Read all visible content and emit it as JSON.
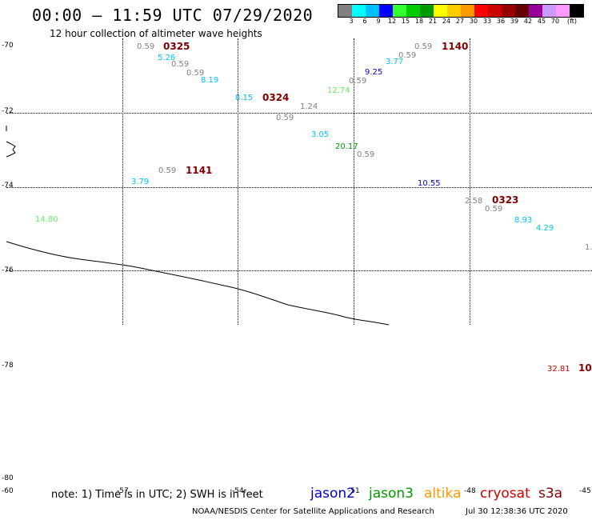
{
  "header": {
    "title": "00:00 – 11:59 UTC 07/29/2020",
    "subtitle": "12 hour collection of altimeter wave heights"
  },
  "legend": {
    "colors": [
      "#808080",
      "#00ffff",
      "#00bfff",
      "#0000ff",
      "#33ff33",
      "#00cc00",
      "#009900",
      "#ffff00",
      "#ffcc00",
      "#ff9900",
      "#ff0000",
      "#cc0000",
      "#990000",
      "#660000",
      "#990099",
      "#cc99ff",
      "#ff99ff",
      "#000000"
    ],
    "labels": [
      "3",
      "6",
      "9",
      "12",
      "15",
      "18",
      "21",
      "24",
      "27",
      "30",
      "33",
      "36",
      "39",
      "42",
      "45",
      "70",
      "(ft)"
    ]
  },
  "axes": {
    "lat_labels": [
      "-70",
      "-72",
      "-74",
      "-76",
      "-78",
      "-80"
    ],
    "lon_labels": [
      "-60",
      "-57",
      "-54",
      "-51",
      "-48",
      "-45"
    ]
  },
  "observations": [
    {
      "text": "0.59",
      "color": "#808080"
    },
    {
      "text": "5.26",
      "color": "#00bfff"
    },
    {
      "text": "0.59",
      "color": "#808080"
    },
    {
      "text": "0.59",
      "color": "#808080"
    },
    {
      "text": "8.19",
      "color": "#00bfff"
    },
    {
      "text": "8.15",
      "color": "#00bfff"
    },
    {
      "text": "1.24",
      "color": "#808080"
    },
    {
      "text": "0.59",
      "color": "#808080"
    },
    {
      "text": "3.05",
      "color": "#00bfff"
    },
    {
      "text": "20.17",
      "color": "#009900"
    },
    {
      "text": "0.59",
      "color": "#808080"
    },
    {
      "text": "12.74",
      "color": "#66ee66"
    },
    {
      "text": "0.59",
      "color": "#808080"
    },
    {
      "text": "9.25",
      "color": "#0000cc"
    },
    {
      "text": "3.77",
      "color": "#00bfff"
    },
    {
      "text": "0.59",
      "color": "#808080"
    },
    {
      "text": "0.59",
      "color": "#808080"
    },
    {
      "text": "0.59",
      "color": "#808080"
    },
    {
      "text": "3.79",
      "color": "#00bfff"
    },
    {
      "text": "10.55",
      "color": "#0000cc"
    },
    {
      "text": "2.58",
      "color": "#808080"
    },
    {
      "text": "0.59",
      "color": "#808080"
    },
    {
      "text": "8.93",
      "color": "#00bfff"
    },
    {
      "text": "4.29",
      "color": "#00bfff"
    },
    {
      "text": "14.80",
      "color": "#66ee66"
    },
    {
      "text": "1.",
      "color": "#808080"
    },
    {
      "text": "32.81",
      "color": "#cc0000"
    }
  ],
  "time_labels": [
    "0325",
    "0324",
    "1140",
    "1141",
    "0323",
    "10"
  ],
  "footer": {
    "note": "note:  1) Time is in UTC;  2) SWH is in feet",
    "satellites": [
      {
        "name": "jason2",
        "color": "#0000cc"
      },
      {
        "name": "jason3",
        "color": "#009900"
      },
      {
        "name": "altika",
        "color": "#ff9900"
      },
      {
        "name": "cryosat",
        "color": "#cc0000"
      },
      {
        "name": "s3a",
        "color": "#800000"
      }
    ],
    "credit": "NOAA/NESDIS Center for Satellite Applications and Research",
    "timestamp": "Jul 30 12:38:36 UTC 2020"
  }
}
